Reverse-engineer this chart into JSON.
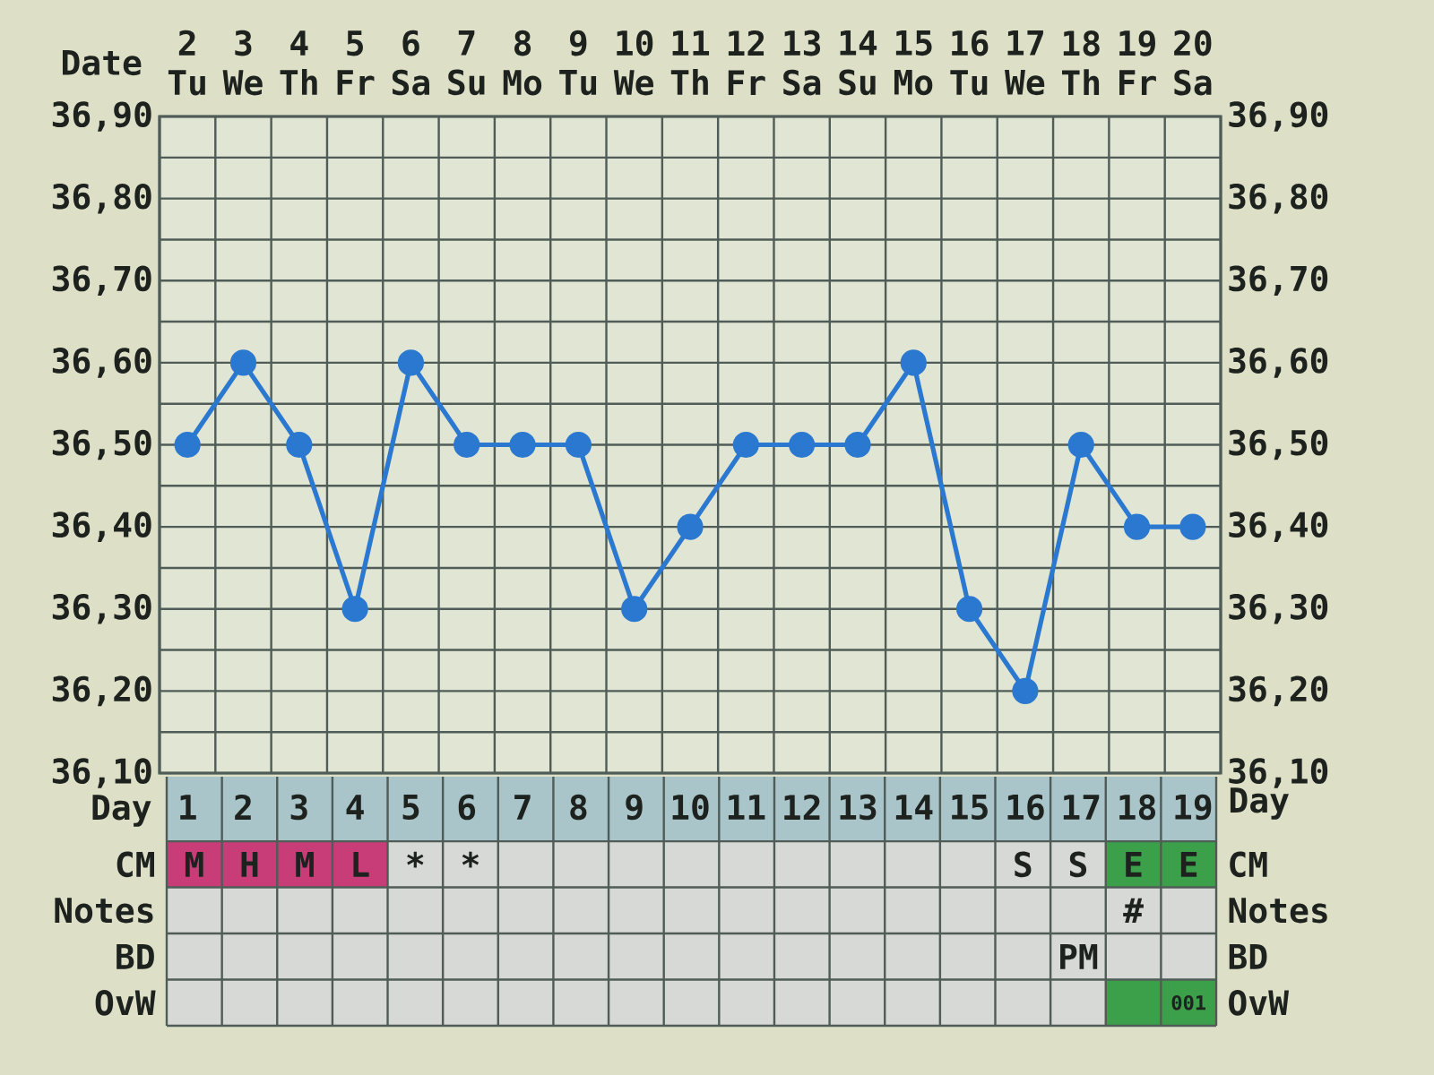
{
  "chart_data": [
    {
      "type": "line",
      "xlabel": "Day",
      "x2label": "Date",
      "x": [
        1,
        2,
        3,
        4,
        5,
        6,
        7,
        8,
        9,
        10,
        11,
        12,
        13,
        14,
        15,
        16,
        17,
        18,
        19
      ],
      "series": [
        {
          "color": "#2a78cf",
          "values": [
            36.5,
            36.6,
            36.5,
            36.3,
            36.6,
            36.5,
            36.5,
            36.5,
            36.3,
            36.4,
            36.5,
            36.5,
            36.5,
            36.6,
            36.3,
            36.2,
            36.5,
            36.4,
            36.4
          ]
        }
      ],
      "marker": "circle",
      "line_style": "solid",
      "grid": true,
      "xlim": [
        0.5,
        19.5
      ],
      "xticks": [
        1,
        2,
        3,
        4,
        5,
        6,
        7,
        8,
        9,
        10,
        11,
        12,
        13,
        14,
        15,
        16,
        17,
        18,
        19
      ],
      "x2lim": [
        1.5,
        20.5
      ],
      "x2ticks": [
        {
          "value": 2,
          "label": "2 Tu"
        },
        {
          "value": 3,
          "label": "3 We"
        },
        {
          "value": 4,
          "label": "4 Th"
        },
        {
          "value": 5,
          "label": "5 Fr"
        },
        {
          "value": 6,
          "label": "6 Sa"
        },
        {
          "value": 7,
          "label": "7 Su"
        },
        {
          "value": 8,
          "label": "8 Mo"
        },
        {
          "value": 9,
          "label": "9 Tu"
        },
        {
          "value": 10,
          "label": "10 We"
        },
        {
          "value": 11,
          "label": "11 Th"
        },
        {
          "value": 12,
          "label": "12 Fr"
        },
        {
          "value": 13,
          "label": "13 Sa"
        },
        {
          "value": 14,
          "label": "14 Su"
        },
        {
          "value": 15,
          "label": "15 Mo"
        },
        {
          "value": 16,
          "label": "16 Tu"
        },
        {
          "value": 17,
          "label": "17 We"
        },
        {
          "value": 18,
          "label": "18 Th"
        },
        {
          "value": 19,
          "label": "19 Fr"
        },
        {
          "value": 20,
          "label": "20 Sa"
        }
      ],
      "ylim": [
        36.1,
        36.9
      ],
      "yticks": [
        {
          "value": 36.1,
          "label": "36,10"
        },
        {
          "value": 36.15,
          "label": null
        },
        {
          "value": 36.2,
          "label": "36,20"
        },
        {
          "value": 36.25,
          "label": null
        },
        {
          "value": 36.3,
          "label": "36,30"
        },
        {
          "value": 36.35,
          "label": null
        },
        {
          "value": 36.4,
          "label": "36,40"
        },
        {
          "value": 36.45,
          "label": null
        },
        {
          "value": 36.5,
          "label": "36,50"
        },
        {
          "value": 36.55,
          "label": null
        },
        {
          "value": 36.6,
          "label": "36,60"
        },
        {
          "value": 36.65,
          "label": null
        },
        {
          "value": 36.7,
          "label": "36,70"
        },
        {
          "value": 36.75,
          "label": null
        },
        {
          "value": 36.8,
          "label": "36,80"
        },
        {
          "value": 36.85,
          "label": null
        },
        {
          "value": 36.9,
          "label": "36,90"
        }
      ],
      "y2lim": [
        36.1,
        36.9
      ],
      "y2ticks": [
        {
          "value": 36.1,
          "label": "36,10"
        },
        {
          "value": 36.2,
          "label": "36,20"
        },
        {
          "value": 36.3,
          "label": "36,30"
        },
        {
          "value": 36.4,
          "label": "36,40"
        },
        {
          "value": 36.5,
          "label": "36,50"
        },
        {
          "value": 36.6,
          "label": "36,60"
        },
        {
          "value": 36.7,
          "label": "36,70"
        },
        {
          "value": 36.8,
          "label": "36,80"
        },
        {
          "value": 36.9,
          "label": "36,90"
        }
      ]
    },
    {
      "type": "other",
      "y_categories": [
        "CM",
        "Notes",
        "BD",
        "OvW"
      ],
      "y2_categories": [
        "CM",
        "Notes",
        "BD",
        "OvW"
      ],
      "cell_labels": [
        [
          "M",
          "H",
          "M",
          "L",
          "*",
          "*",
          null,
          null,
          null,
          null,
          null,
          null,
          null,
          null,
          null,
          "S",
          "S",
          "E",
          "E"
        ],
        [
          null,
          null,
          null,
          null,
          null,
          null,
          null,
          null,
          null,
          null,
          null,
          null,
          null,
          null,
          null,
          null,
          null,
          "#",
          null
        ],
        [
          null,
          null,
          null,
          null,
          null,
          null,
          null,
          null,
          null,
          null,
          null,
          null,
          null,
          null,
          null,
          null,
          "PM",
          null,
          null
        ],
        [
          null,
          null,
          null,
          null,
          null,
          null,
          null,
          null,
          null,
          null,
          null,
          null,
          null,
          null,
          null,
          null,
          null,
          null,
          "001"
        ]
      ],
      "colors": [
        [
          "#c83c78",
          "#c83c78",
          "#c83c78",
          "#c83c78",
          null,
          null,
          null,
          null,
          null,
          null,
          null,
          null,
          null,
          null,
          null,
          null,
          null,
          "#3ca04a",
          "#3ca04a"
        ],
        [
          null,
          null,
          null,
          null,
          null,
          null,
          null,
          null,
          null,
          null,
          null,
          null,
          null,
          null,
          null,
          null,
          null,
          null,
          null
        ],
        [
          null,
          null,
          null,
          null,
          null,
          null,
          null,
          null,
          null,
          null,
          null,
          null,
          null,
          null,
          null,
          null,
          null,
          null,
          null
        ],
        [
          null,
          null,
          null,
          null,
          null,
          null,
          null,
          null,
          null,
          null,
          null,
          null,
          null,
          null,
          null,
          null,
          null,
          "#3ca04a",
          "#3ca04a"
        ]
      ]
    }
  ]
}
